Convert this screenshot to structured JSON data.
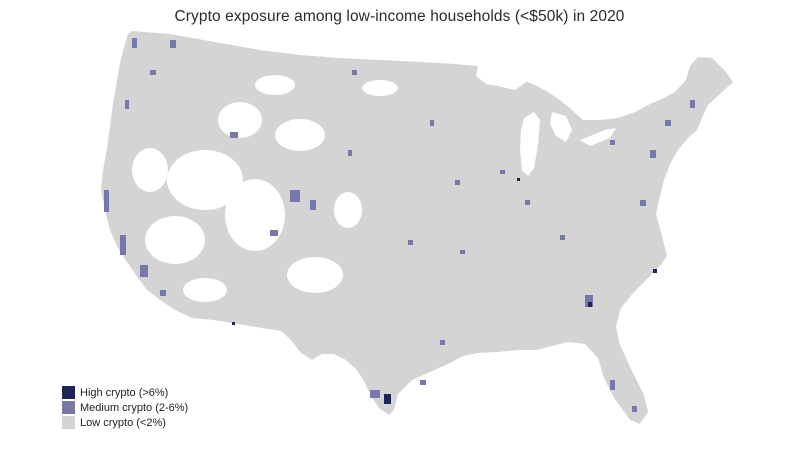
{
  "title": "Crypto exposure among low-income households (<$50k) in 2020",
  "legend": [
    {
      "label": "High crypto (>6%)",
      "color": "#1f2456"
    },
    {
      "label": "Medium crypto (2-6%)",
      "color": "#7679a8"
    },
    {
      "label": "Low crypto (<2%)",
      "color": "#d4d4d4"
    }
  ],
  "map": {
    "region": "Contiguous United States",
    "base_color": "#d4d4d4",
    "missing_color": "#ffffff"
  }
}
